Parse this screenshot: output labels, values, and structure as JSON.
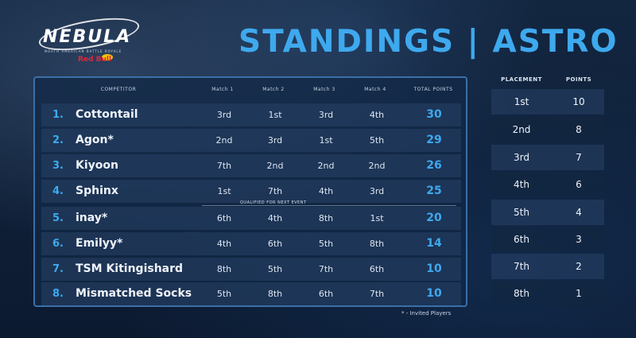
{
  "logo": {
    "brand": "NEBULA",
    "tagline": "NORTH AMERICAN BATTLE ROYALE",
    "sponsor": "Red Bull"
  },
  "page_title": "STANDINGS | ASTRO",
  "standings": {
    "headers": {
      "competitor": "COMPETITOR",
      "match1": "Match 1",
      "match2": "Match 2",
      "match3": "Match 3",
      "match4": "Match 4",
      "total": "TOTAL POINTS"
    },
    "rows": [
      {
        "rank": "1.",
        "name": "Cottontail",
        "m1": "3rd",
        "m2": "1st",
        "m3": "3rd",
        "m4": "4th",
        "total": "30"
      },
      {
        "rank": "2.",
        "name": "Agon*",
        "m1": "2nd",
        "m2": "3rd",
        "m3": "1st",
        "m4": "5th",
        "total": "29"
      },
      {
        "rank": "3.",
        "name": "Kiyoon",
        "m1": "7th",
        "m2": "2nd",
        "m3": "2nd",
        "m4": "2nd",
        "total": "26"
      },
      {
        "rank": "4.",
        "name": "Sphinx",
        "m1": "1st",
        "m2": "7th",
        "m3": "4th",
        "m4": "3rd",
        "total": "25"
      },
      {
        "rank": "5.",
        "name": "inay*",
        "m1": "6th",
        "m2": "4th",
        "m3": "8th",
        "m4": "1st",
        "total": "20"
      },
      {
        "rank": "6.",
        "name": "Emilyy*",
        "m1": "4th",
        "m2": "6th",
        "m3": "5th",
        "m4": "8th",
        "total": "14"
      },
      {
        "rank": "7.",
        "name": "TSM Kitingishard",
        "m1": "8th",
        "m2": "5th",
        "m3": "7th",
        "m4": "6th",
        "total": "10"
      },
      {
        "rank": "8.",
        "name": "Mismatched Socks",
        "m1": "5th",
        "m2": "8th",
        "m3": "6th",
        "m4": "7th",
        "total": "10"
      }
    ],
    "qualified_label": "QUALIFIED FOR NEXT EVENT",
    "footnote": "* - Invited Players"
  },
  "placement_table": {
    "headers": {
      "placement": "PLACEMENT",
      "points": "POINTS"
    },
    "rows": [
      {
        "place": "1st",
        "points": "10"
      },
      {
        "place": "2nd",
        "points": "8"
      },
      {
        "place": "3rd",
        "points": "7"
      },
      {
        "place": "4th",
        "points": "6"
      },
      {
        "place": "5th",
        "points": "4"
      },
      {
        "place": "6th",
        "points": "3"
      },
      {
        "place": "7th",
        "points": "2"
      },
      {
        "place": "8th",
        "points": "1"
      }
    ]
  },
  "colors": {
    "accent": "#3ea9ee",
    "background": "#0f2038",
    "sponsor_red": "#e0263b"
  }
}
